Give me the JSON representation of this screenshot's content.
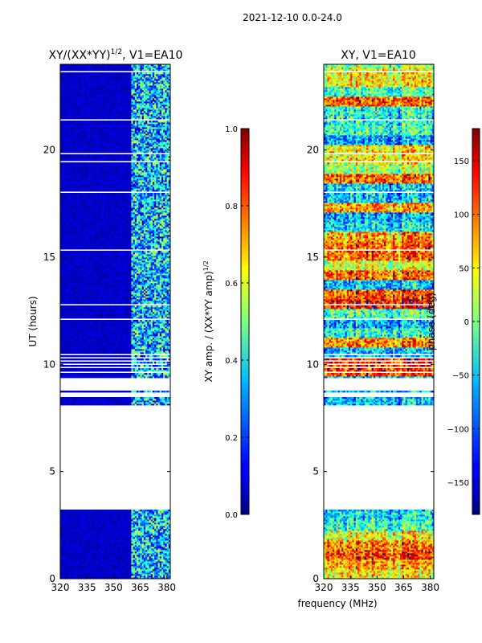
{
  "figure": {
    "suptitle": "2021-12-10 0.0-24.0",
    "shared_xlabel": "frequency (MHz)"
  },
  "chart_data": [
    {
      "type": "heatmap",
      "title": "XY/(XX*YY)^{1/2}, V1=EA10",
      "title_main": "XY/(XX*YY)",
      "title_exp": "1/2",
      "title_tail": ", V1=EA10",
      "xlabel": "frequency (MHz)",
      "ylabel": "UT (hours)",
      "xlim": [
        320,
        382
      ],
      "ylim": [
        0,
        24
      ],
      "xticks": [
        320,
        335,
        350,
        365,
        380
      ],
      "yticks": [
        0,
        5,
        10,
        15,
        20
      ],
      "no_data_ranges_hours": [
        [
          3.25,
          8.0
        ]
      ],
      "colorbar": {
        "label": "XY amp. / (XX*YY amp)^{1/2}",
        "label_main": "XY amp. / (XX*YY amp)",
        "label_exp": "1/2",
        "range": [
          0.0,
          1.0
        ],
        "ticks": [
          "0.0",
          "0.2",
          "0.4",
          "0.6",
          "0.8",
          "1.0"
        ],
        "colormap": "jet"
      }
    },
    {
      "type": "heatmap",
      "title": "XY, V1=EA10",
      "xlabel": "frequency (MHz)",
      "ylabel": "",
      "xlim": [
        320,
        382
      ],
      "ylim": [
        0,
        24
      ],
      "xticks": [
        320,
        335,
        350,
        365,
        380
      ],
      "yticks": [
        0,
        5,
        10,
        15,
        20
      ],
      "no_data_ranges_hours": [
        [
          3.25,
          8.0
        ]
      ],
      "colorbar": {
        "label": "phase (deg)",
        "range": [
          -180,
          180
        ],
        "ticks": [
          "−150",
          "−100",
          "−50",
          "0",
          "50",
          "100",
          "150"
        ],
        "colormap": "jet"
      }
    }
  ]
}
